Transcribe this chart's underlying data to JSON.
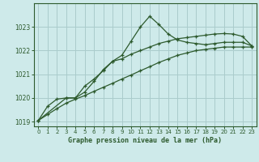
{
  "title": "Graphe pression niveau de la mer (hPa)",
  "background_color": "#ceeaea",
  "grid_color": "#aacccc",
  "line_color": "#2d5a2d",
  "xlim": [
    -0.5,
    23.5
  ],
  "ylim": [
    1018.8,
    1024.0
  ],
  "yticks": [
    1019,
    1020,
    1021,
    1022,
    1023
  ],
  "xticks": [
    0,
    1,
    2,
    3,
    4,
    5,
    6,
    7,
    8,
    9,
    10,
    11,
    12,
    13,
    14,
    15,
    16,
    17,
    18,
    19,
    20,
    21,
    22,
    23
  ],
  "line1_x": [
    0,
    1,
    2,
    3,
    4,
    5,
    6,
    7,
    8,
    9,
    10,
    11,
    12,
    13,
    14,
    15,
    16,
    17,
    18,
    19,
    20,
    21,
    22,
    23
  ],
  "line1_y": [
    1019.05,
    1019.65,
    1019.95,
    1020.0,
    1020.0,
    1020.25,
    1020.7,
    1021.2,
    1021.55,
    1021.8,
    1022.4,
    1023.0,
    1023.45,
    1023.1,
    1022.7,
    1022.45,
    1022.35,
    1022.3,
    1022.25,
    1022.3,
    1022.35,
    1022.35,
    1022.35,
    1022.2
  ],
  "line2_x": [
    0,
    3,
    4,
    5,
    6,
    7,
    8,
    9,
    10,
    11,
    12,
    13,
    14,
    15,
    16,
    17,
    18,
    19,
    20,
    21,
    22,
    23
  ],
  "line2_y": [
    1019.05,
    1020.0,
    1020.0,
    1020.5,
    1020.8,
    1021.15,
    1021.55,
    1021.65,
    1021.85,
    1022.0,
    1022.15,
    1022.3,
    1022.4,
    1022.5,
    1022.55,
    1022.6,
    1022.65,
    1022.7,
    1022.72,
    1022.7,
    1022.6,
    1022.2
  ],
  "line3_x": [
    0,
    1,
    2,
    3,
    4,
    5,
    6,
    7,
    8,
    9,
    10,
    11,
    12,
    13,
    14,
    15,
    16,
    17,
    18,
    19,
    20,
    21,
    22,
    23
  ],
  "line3_y": [
    1019.05,
    1019.3,
    1019.55,
    1019.78,
    1019.95,
    1020.1,
    1020.28,
    1020.45,
    1020.62,
    1020.8,
    1020.97,
    1021.15,
    1021.32,
    1021.5,
    1021.65,
    1021.8,
    1021.9,
    1022.0,
    1022.05,
    1022.1,
    1022.15,
    1022.15,
    1022.15,
    1022.15
  ]
}
